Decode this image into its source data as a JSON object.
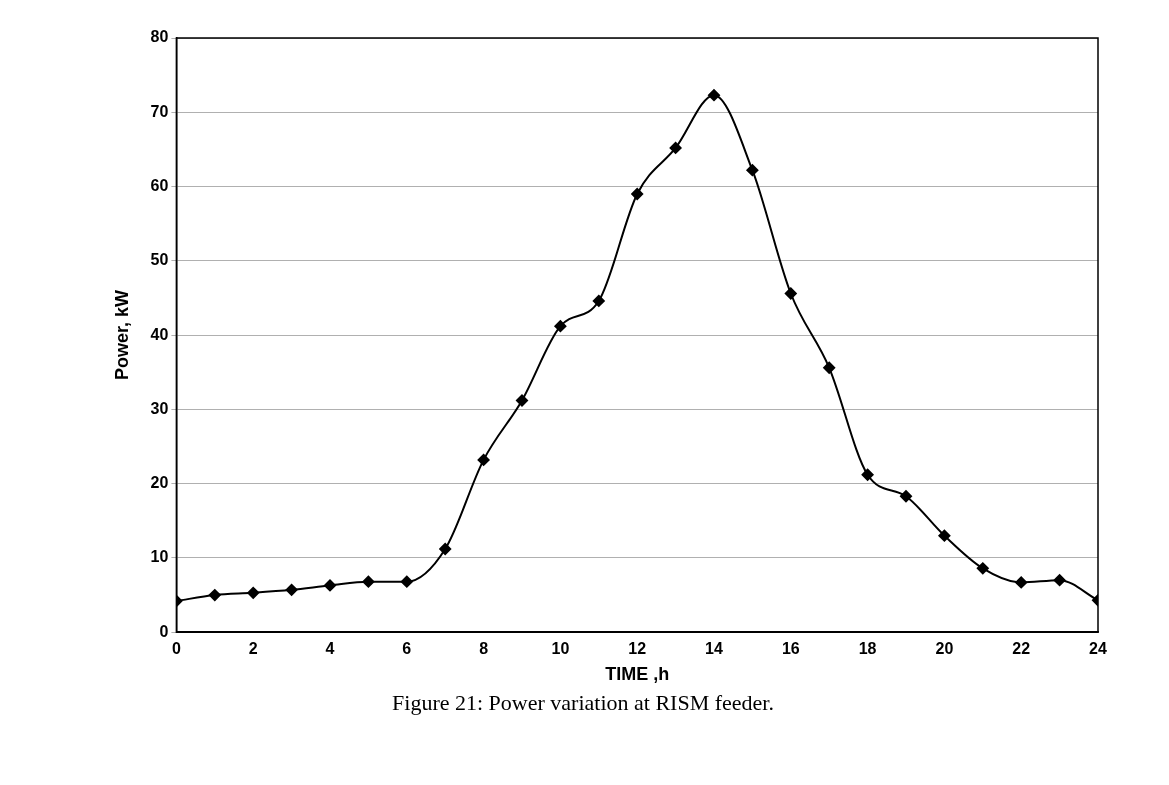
{
  "chart_data": {
    "type": "line",
    "xlabel": "TIME ,h",
    "ylabel": "Power, kW",
    "annotations": [
      "Figure 21: Power variation at RISM feeder."
    ],
    "x": [
      0,
      1,
      2,
      3,
      4,
      5,
      6,
      7,
      8,
      9,
      10,
      11,
      12,
      13,
      14,
      15,
      16,
      17,
      18,
      19,
      20,
      21,
      22,
      23,
      24
    ],
    "series": [
      {
        "color": "#000000",
        "values": [
          4.2,
          5.0,
          5.3,
          5.7,
          6.3,
          6.8,
          6.8,
          11.2,
          23.2,
          31.2,
          41.2,
          44.6,
          59.0,
          65.2,
          72.3,
          62.2,
          45.6,
          35.6,
          21.2,
          18.3,
          13.0,
          8.6,
          6.7,
          7.0,
          4.3
        ]
      }
    ],
    "xlim": [
      0,
      24
    ],
    "xticks": [
      0,
      2,
      4,
      6,
      8,
      10,
      12,
      14,
      16,
      18,
      20,
      22,
      24
    ],
    "ylim": [
      0,
      80
    ],
    "yticks": [
      0,
      10,
      20,
      30,
      40,
      50,
      60,
      70,
      80
    ],
    "grid": "y",
    "marker": "diamond",
    "line_style": "solid"
  }
}
